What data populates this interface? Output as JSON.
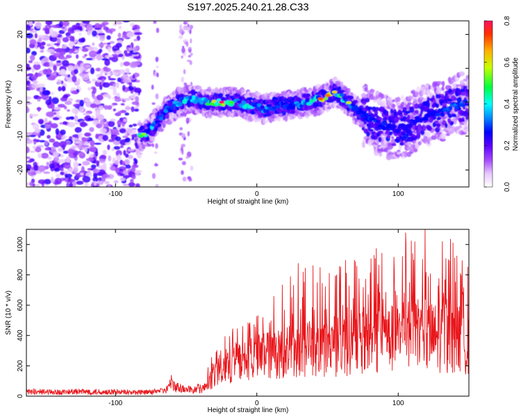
{
  "title": "S197.2025.240.21.28.C33",
  "chart_data": [
    {
      "type": "heatmap",
      "title": "S197.2025.240.21.28.C33",
      "xlabel": "Height of straight line (km)",
      "ylabel": "Frequency (Hz)",
      "xlim": [
        -163,
        150
      ],
      "ylim": [
        -25,
        24
      ],
      "xticks": [
        -100,
        0,
        100
      ],
      "yticks": [
        -20,
        -10,
        0,
        10,
        20
      ],
      "colorbar": {
        "label": "Normalized spectral amplitude",
        "range": [
          0,
          0.8
        ],
        "ticks": [
          "0.0",
          "0.2",
          "0.4",
          "0.6",
          "0.8"
        ]
      },
      "ridge": {
        "description_points_x": [
          -82,
          -75,
          -65,
          -55,
          -45,
          -35,
          -25,
          -15,
          -5,
          5,
          15,
          25,
          35,
          45,
          55,
          62,
          70,
          80,
          90,
          100,
          110,
          120,
          130,
          140,
          150
        ],
        "frequency_hz": [
          -10,
          -8,
          -3,
          0,
          1,
          0,
          0,
          0,
          -1,
          -2,
          -1,
          -1,
          0,
          1,
          3,
          1,
          -2,
          -5,
          -7,
          -8,
          -6,
          -4,
          -3,
          -1,
          0
        ],
        "peak_amplitude": [
          0.5,
          0.4,
          0.35,
          0.4,
          0.45,
          0.5,
          0.8,
          0.4,
          0.45,
          0.4,
          0.3,
          0.35,
          0.4,
          0.7,
          0.65,
          0.4,
          0.3,
          0.3,
          0.3,
          0.25,
          0.25,
          0.3,
          0.3,
          0.35,
          0.3
        ]
      }
    },
    {
      "type": "line",
      "xlabel": "Height of straight line (km)",
      "ylabel": "SNR (10 * v/v)",
      "xlim": [
        -163,
        150
      ],
      "ylim": [
        0,
        1100
      ],
      "xticks": [
        -100,
        0,
        100
      ],
      "yticks": [
        0,
        200,
        400,
        600,
        800,
        1000
      ],
      "series": [
        {
          "name": "SNR",
          "color": "#e8161b",
          "x": [
            -163,
            -140,
            -120,
            -100,
            -80,
            -65,
            -60,
            -55,
            -45,
            -37,
            -33,
            -25,
            -15,
            -5,
            5,
            15,
            25,
            35,
            45,
            55,
            65,
            75,
            85,
            95,
            105,
            115,
            125,
            135,
            145,
            150
          ],
          "envelope_max": [
            50,
            45,
            50,
            45,
            40,
            55,
            150,
            90,
            60,
            120,
            250,
            400,
            470,
            500,
            560,
            720,
            900,
            880,
            860,
            850,
            980,
            830,
            1050,
            1100,
            1100,
            1100,
            1100,
            1080,
            950,
            880
          ],
          "typical_level": [
            25,
            25,
            25,
            25,
            25,
            40,
            80,
            60,
            40,
            60,
            120,
            180,
            230,
            260,
            290,
            310,
            330,
            340,
            350,
            360,
            370,
            380,
            400,
            420,
            430,
            430,
            430,
            420,
            410,
            400
          ]
        }
      ]
    }
  ]
}
